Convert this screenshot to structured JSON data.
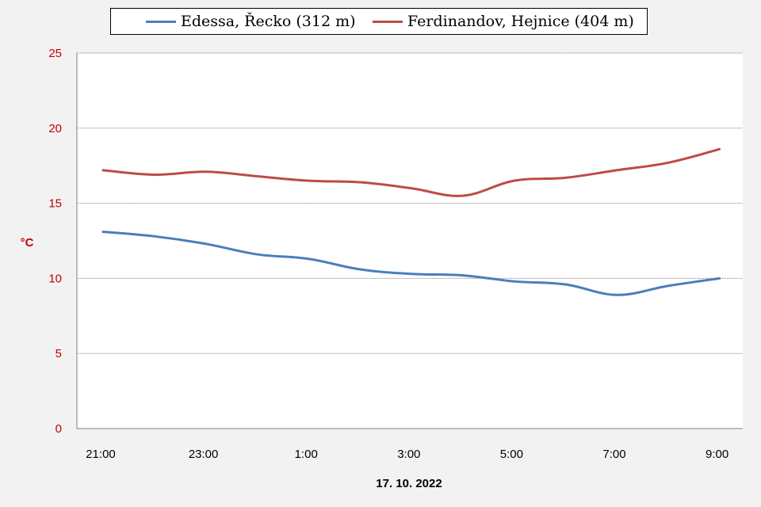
{
  "chart_data": {
    "type": "line",
    "title": "",
    "xlabel": "17. 10. 2022",
    "ylabel": "°C",
    "ylim": [
      0,
      25
    ],
    "yticks": [
      0,
      5,
      10,
      15,
      20,
      25
    ],
    "grid": true,
    "legend_position": "top",
    "x": [
      "21:00",
      "22:00",
      "23:00",
      "0:00",
      "1:00",
      "2:00",
      "3:00",
      "4:00",
      "5:00",
      "6:00",
      "7:00",
      "8:00",
      "9:00"
    ],
    "xtick_labels": [
      "21:00",
      "23:00",
      "1:00",
      "3:00",
      "5:00",
      "7:00",
      "9:00"
    ],
    "series": [
      {
        "name": "Edessa, Řecko (312 m)",
        "color": "#4a7ebb",
        "values": [
          13.1,
          12.8,
          12.3,
          11.6,
          11.3,
          10.6,
          10.3,
          10.2,
          9.8,
          9.6,
          8.9,
          9.5,
          10.0
        ]
      },
      {
        "name": "Ferdinandov, Hejnice (404 m)",
        "color": "#be4b48",
        "values": [
          17.2,
          16.9,
          17.1,
          16.8,
          16.5,
          16.4,
          16.0,
          15.5,
          16.5,
          16.7,
          17.2,
          17.7,
          18.6
        ]
      }
    ]
  }
}
